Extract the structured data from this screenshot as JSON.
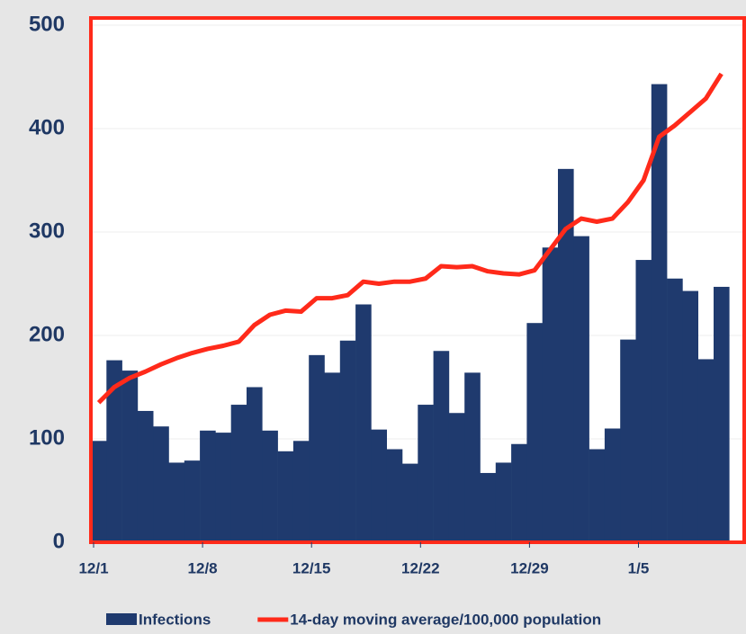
{
  "chart_data": {
    "type": "bar_line",
    "categories": [
      "12/1",
      null,
      null,
      null,
      null,
      null,
      null,
      "12/8",
      null,
      null,
      null,
      null,
      null,
      null,
      "12/15",
      null,
      null,
      null,
      null,
      null,
      null,
      "12/22",
      null,
      null,
      null,
      null,
      null,
      null,
      "12/29",
      null,
      null,
      null,
      null,
      null,
      null,
      "1/5",
      null,
      null,
      null,
      null,
      null
    ],
    "series": [
      {
        "name": "Infections",
        "kind": "bar",
        "color": "#1f3a6e",
        "values": [
          98,
          176,
          166,
          127,
          112,
          77,
          79,
          108,
          106,
          133,
          150,
          108,
          88,
          98,
          181,
          164,
          195,
          230,
          109,
          90,
          76,
          133,
          185,
          125,
          164,
          67,
          77,
          95,
          212,
          285,
          361,
          296,
          90,
          110,
          196,
          273,
          443,
          255,
          243,
          177,
          247
        ]
      },
      {
        "name": "14-day moving average/100,000 population",
        "kind": "line",
        "color": "#ff2a1a",
        "values": [
          135,
          150,
          159,
          165,
          172,
          178,
          183,
          187,
          190,
          194,
          210,
          220,
          224,
          223,
          236,
          236,
          239,
          252,
          250,
          252,
          252,
          255,
          267,
          266,
          267,
          262,
          260,
          259,
          263,
          283,
          303,
          313,
          310,
          313,
          329,
          350,
          392,
          403,
          416,
          429,
          453
        ]
      }
    ],
    "ylim": [
      0,
      500
    ],
    "yticks": [
      0,
      100,
      200,
      300,
      400,
      500
    ],
    "grid": true
  }
}
